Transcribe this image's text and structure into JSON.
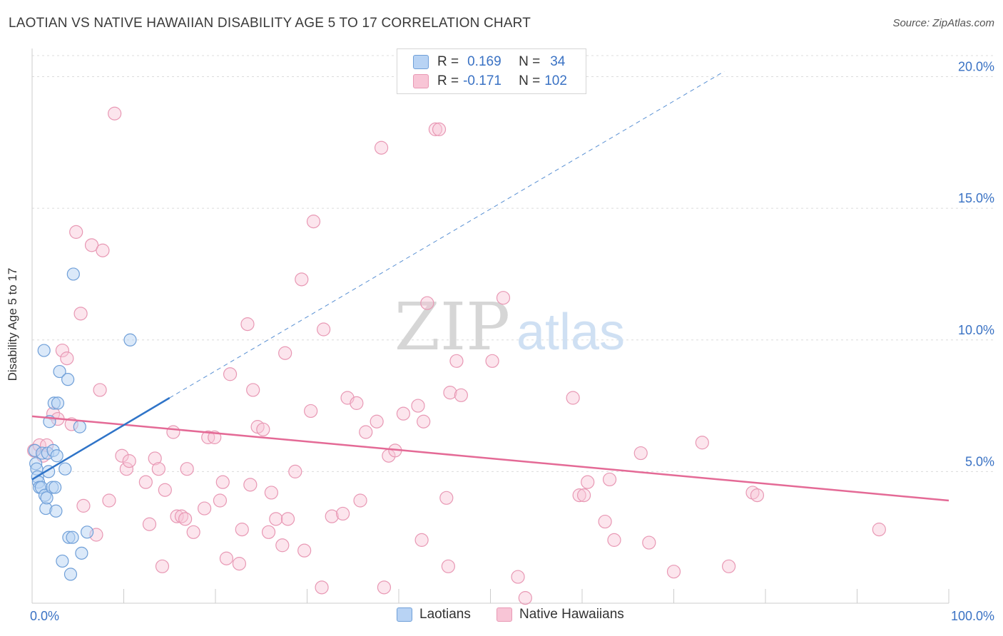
{
  "title": "LAOTIAN VS NATIVE HAWAIIAN DISABILITY AGE 5 TO 17 CORRELATION CHART",
  "source": "Source: ZipAtlas.com",
  "watermark": {
    "zip": "ZIP",
    "atlas": "atlas"
  },
  "legend": {
    "r_label": "R =",
    "n_label": "N =",
    "series": [
      {
        "name": "Laotians",
        "r": "0.169",
        "n": "34"
      },
      {
        "name": "Native Hawaiians",
        "r": "-0.171",
        "n": "102"
      }
    ]
  },
  "colors": {
    "laotian_fill": "#b8d3f4",
    "laotian_stroke": "#6f9fd8",
    "laotian_line": "#2f74c8",
    "hawaiian_fill": "#f8c5d6",
    "hawaiian_stroke": "#e898b4",
    "hawaiian_line": "#e46a96",
    "axis_text": "#3a72c4",
    "grid": "#dcdcdc"
  },
  "chart_data": {
    "type": "scatter",
    "title": "LAOTIAN VS NATIVE HAWAIIAN DISABILITY AGE 5 TO 17 CORRELATION CHART",
    "xlabel": "",
    "ylabel": "Disability Age 5 to 17",
    "xlim": [
      0,
      100
    ],
    "ylim": [
      0,
      20.8
    ],
    "x_tick_labels": [
      {
        "value": 0,
        "label": "0.0%"
      },
      {
        "value": 100,
        "label": "100.0%"
      }
    ],
    "y_ticks": [
      {
        "value": 5,
        "label": "5.0%"
      },
      {
        "value": 10,
        "label": "10.0%"
      },
      {
        "value": 15,
        "label": "15.0%"
      },
      {
        "value": 20,
        "label": "20.0%"
      }
    ],
    "x_minor_ticks": [
      0,
      10,
      20,
      30,
      40,
      50,
      60,
      70,
      80,
      90,
      100
    ],
    "series": [
      {
        "name": "Laotians",
        "points": [
          [
            0.3,
            5.8
          ],
          [
            0.4,
            5.3
          ],
          [
            0.5,
            5.1
          ],
          [
            0.6,
            4.8
          ],
          [
            0.7,
            4.6
          ],
          [
            0.8,
            4.4
          ],
          [
            1.0,
            4.4
          ],
          [
            1.1,
            5.7
          ],
          [
            1.3,
            9.6
          ],
          [
            1.4,
            4.1
          ],
          [
            1.5,
            3.6
          ],
          [
            1.6,
            4.0
          ],
          [
            1.7,
            5.7
          ],
          [
            1.8,
            5.0
          ],
          [
            1.9,
            6.9
          ],
          [
            2.2,
            4.4
          ],
          [
            2.3,
            5.8
          ],
          [
            2.4,
            7.6
          ],
          [
            2.5,
            4.4
          ],
          [
            2.6,
            3.5
          ],
          [
            2.7,
            5.6
          ],
          [
            2.8,
            7.6
          ],
          [
            3.0,
            8.8
          ],
          [
            3.3,
            1.6
          ],
          [
            3.6,
            5.1
          ],
          [
            3.9,
            8.5
          ],
          [
            4.0,
            2.5
          ],
          [
            4.2,
            1.1
          ],
          [
            4.4,
            2.5
          ],
          [
            5.2,
            6.7
          ],
          [
            5.4,
            1.9
          ],
          [
            6.0,
            2.7
          ],
          [
            4.5,
            12.5
          ],
          [
            10.7,
            10.0
          ]
        ],
        "trend": {
          "x": [
            0,
            15
          ],
          "y": [
            4.7,
            7.8
          ],
          "dashed_extension": {
            "x": [
              15,
              75.5
            ],
            "y": [
              7.8,
              20.2
            ]
          }
        }
      },
      {
        "name": "Native Hawaiians",
        "points": [
          [
            0.2,
            5.8
          ],
          [
            0.8,
            6.0
          ],
          [
            1.2,
            5.6
          ],
          [
            1.6,
            6.0
          ],
          [
            2.3,
            7.2
          ],
          [
            2.8,
            7.0
          ],
          [
            3.3,
            9.6
          ],
          [
            3.8,
            9.3
          ],
          [
            4.3,
            6.8
          ],
          [
            4.8,
            14.1
          ],
          [
            5.3,
            11.0
          ],
          [
            5.6,
            3.7
          ],
          [
            6.5,
            13.6
          ],
          [
            7.0,
            2.6
          ],
          [
            7.4,
            8.1
          ],
          [
            7.7,
            13.4
          ],
          [
            8.4,
            3.9
          ],
          [
            9.0,
            18.6
          ],
          [
            9.8,
            5.6
          ],
          [
            10.3,
            5.1
          ],
          [
            10.6,
            5.4
          ],
          [
            12.4,
            4.6
          ],
          [
            12.8,
            3.0
          ],
          [
            13.4,
            5.5
          ],
          [
            13.8,
            5.1
          ],
          [
            14.2,
            1.4
          ],
          [
            14.5,
            4.3
          ],
          [
            15.4,
            6.5
          ],
          [
            15.8,
            3.3
          ],
          [
            16.3,
            3.3
          ],
          [
            16.7,
            3.2
          ],
          [
            16.9,
            5.1
          ],
          [
            17.6,
            2.7
          ],
          [
            18.8,
            3.6
          ],
          [
            19.2,
            6.3
          ],
          [
            19.9,
            6.3
          ],
          [
            20.5,
            3.9
          ],
          [
            20.8,
            4.6
          ],
          [
            21.2,
            1.7
          ],
          [
            21.6,
            8.7
          ],
          [
            22.6,
            1.5
          ],
          [
            22.9,
            2.8
          ],
          [
            23.5,
            10.6
          ],
          [
            23.8,
            4.5
          ],
          [
            24.1,
            8.1
          ],
          [
            24.6,
            6.7
          ],
          [
            25.2,
            6.6
          ],
          [
            25.8,
            2.7
          ],
          [
            26.1,
            4.2
          ],
          [
            26.6,
            3.2
          ],
          [
            27.3,
            2.2
          ],
          [
            27.6,
            9.5
          ],
          [
            27.9,
            3.2
          ],
          [
            28.7,
            5.0
          ],
          [
            29.4,
            12.3
          ],
          [
            29.7,
            2.0
          ],
          [
            30.4,
            7.3
          ],
          [
            30.7,
            14.5
          ],
          [
            31.6,
            0.6
          ],
          [
            31.8,
            10.4
          ],
          [
            32.7,
            3.3
          ],
          [
            33.9,
            3.4
          ],
          [
            34.4,
            7.8
          ],
          [
            35.4,
            7.6
          ],
          [
            35.8,
            3.9
          ],
          [
            36.4,
            6.5
          ],
          [
            37.6,
            6.9
          ],
          [
            38.1,
            17.3
          ],
          [
            38.4,
            0.6
          ],
          [
            38.9,
            5.6
          ],
          [
            39.6,
            5.8
          ],
          [
            40.5,
            7.2
          ],
          [
            42.1,
            7.5
          ],
          [
            42.5,
            2.4
          ],
          [
            42.7,
            6.9
          ],
          [
            43.1,
            11.4
          ],
          [
            44.0,
            18.0
          ],
          [
            44.4,
            18.0
          ],
          [
            45.2,
            4.0
          ],
          [
            45.4,
            1.4
          ],
          [
            45.6,
            8.0
          ],
          [
            46.3,
            9.2
          ],
          [
            46.8,
            7.9
          ],
          [
            50.2,
            9.2
          ],
          [
            51.4,
            11.6
          ],
          [
            53.0,
            1.0
          ],
          [
            53.8,
            0.2
          ],
          [
            59.0,
            7.8
          ],
          [
            59.7,
            4.1
          ],
          [
            60.2,
            4.1
          ],
          [
            60.6,
            4.6
          ],
          [
            62.5,
            3.1
          ],
          [
            63.0,
            4.7
          ],
          [
            63.5,
            2.4
          ],
          [
            66.4,
            5.7
          ],
          [
            67.3,
            2.3
          ],
          [
            70.0,
            1.2
          ],
          [
            73.1,
            6.1
          ],
          [
            76.0,
            1.4
          ],
          [
            78.6,
            4.2
          ],
          [
            79.1,
            4.1
          ],
          [
            92.4,
            2.8
          ]
        ],
        "trend": {
          "x": [
            0,
            100
          ],
          "y": [
            7.1,
            3.9
          ]
        }
      }
    ]
  }
}
